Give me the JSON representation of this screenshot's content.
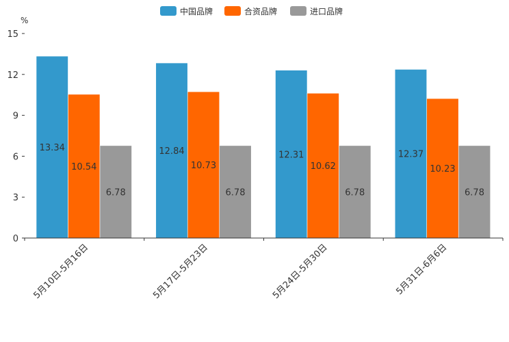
{
  "chart_data": {
    "type": "bar",
    "title": "",
    "xlabel": "",
    "ylabel": "%",
    "ylim": [
      0,
      15
    ],
    "yticks": [
      0,
      3,
      6,
      9,
      12,
      15
    ],
    "grid": false,
    "legend_position": "top-center",
    "categories": [
      "5月10日-5月16日",
      "5月17日-5月23日",
      "5月24日-5月30日",
      "5月31日-6月6日"
    ],
    "series": [
      {
        "name": "中国品牌",
        "color": "#3399cc",
        "values": [
          13.34,
          12.84,
          12.31,
          12.37
        ]
      },
      {
        "name": "合资品牌",
        "color": "#ff6600",
        "values": [
          10.54,
          10.73,
          10.62,
          10.23
        ]
      },
      {
        "name": "进口品牌",
        "color": "#999999",
        "values": [
          6.78,
          6.78,
          6.78,
          6.78
        ]
      }
    ]
  }
}
